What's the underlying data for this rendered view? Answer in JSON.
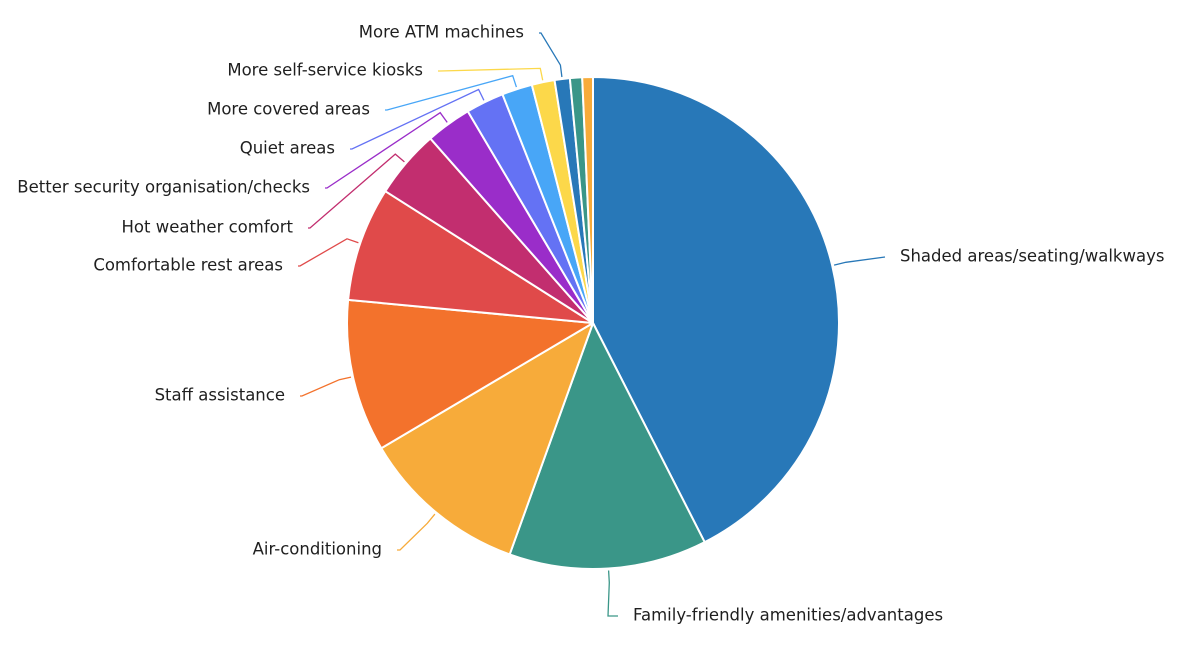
{
  "chart_data": {
    "type": "pie",
    "title": "",
    "start_angle_deg": 0,
    "direction": "clockwise",
    "slices": [
      {
        "label": "Shaded areas/seating/walkways",
        "value": 42.5,
        "color": "#2878b8"
      },
      {
        "label": "Family-friendly amenities/advantages",
        "value": 13.0,
        "color": "#3a9688"
      },
      {
        "label": "Air-conditioning",
        "value": 11.0,
        "color": "#f7ab3a"
      },
      {
        "label": "Staff assistance",
        "value": 10.0,
        "color": "#f3722c"
      },
      {
        "label": "Comfortable rest areas",
        "value": 7.5,
        "color": "#e04a4a"
      },
      {
        "label": "Hot weather comfort",
        "value": 4.5,
        "color": "#c22e6f"
      },
      {
        "label": "Better security organisation/checks",
        "value": 3.0,
        "color": "#9a2dc9"
      },
      {
        "label": "Quiet areas",
        "value": 2.5,
        "color": "#6472f4"
      },
      {
        "label": "More covered areas",
        "value": 2.0,
        "color": "#48a6f7"
      },
      {
        "label": "More self-service kiosks",
        "value": 1.5,
        "color": "#fcd84a"
      },
      {
        "label": "More ATM machines",
        "value": 1.0,
        "color": "#2878b8"
      },
      {
        "label": "",
        "value": 0.8,
        "color": "#3a9688"
      },
      {
        "label": "",
        "value": 0.7,
        "color": "#f7ab3a"
      }
    ]
  }
}
